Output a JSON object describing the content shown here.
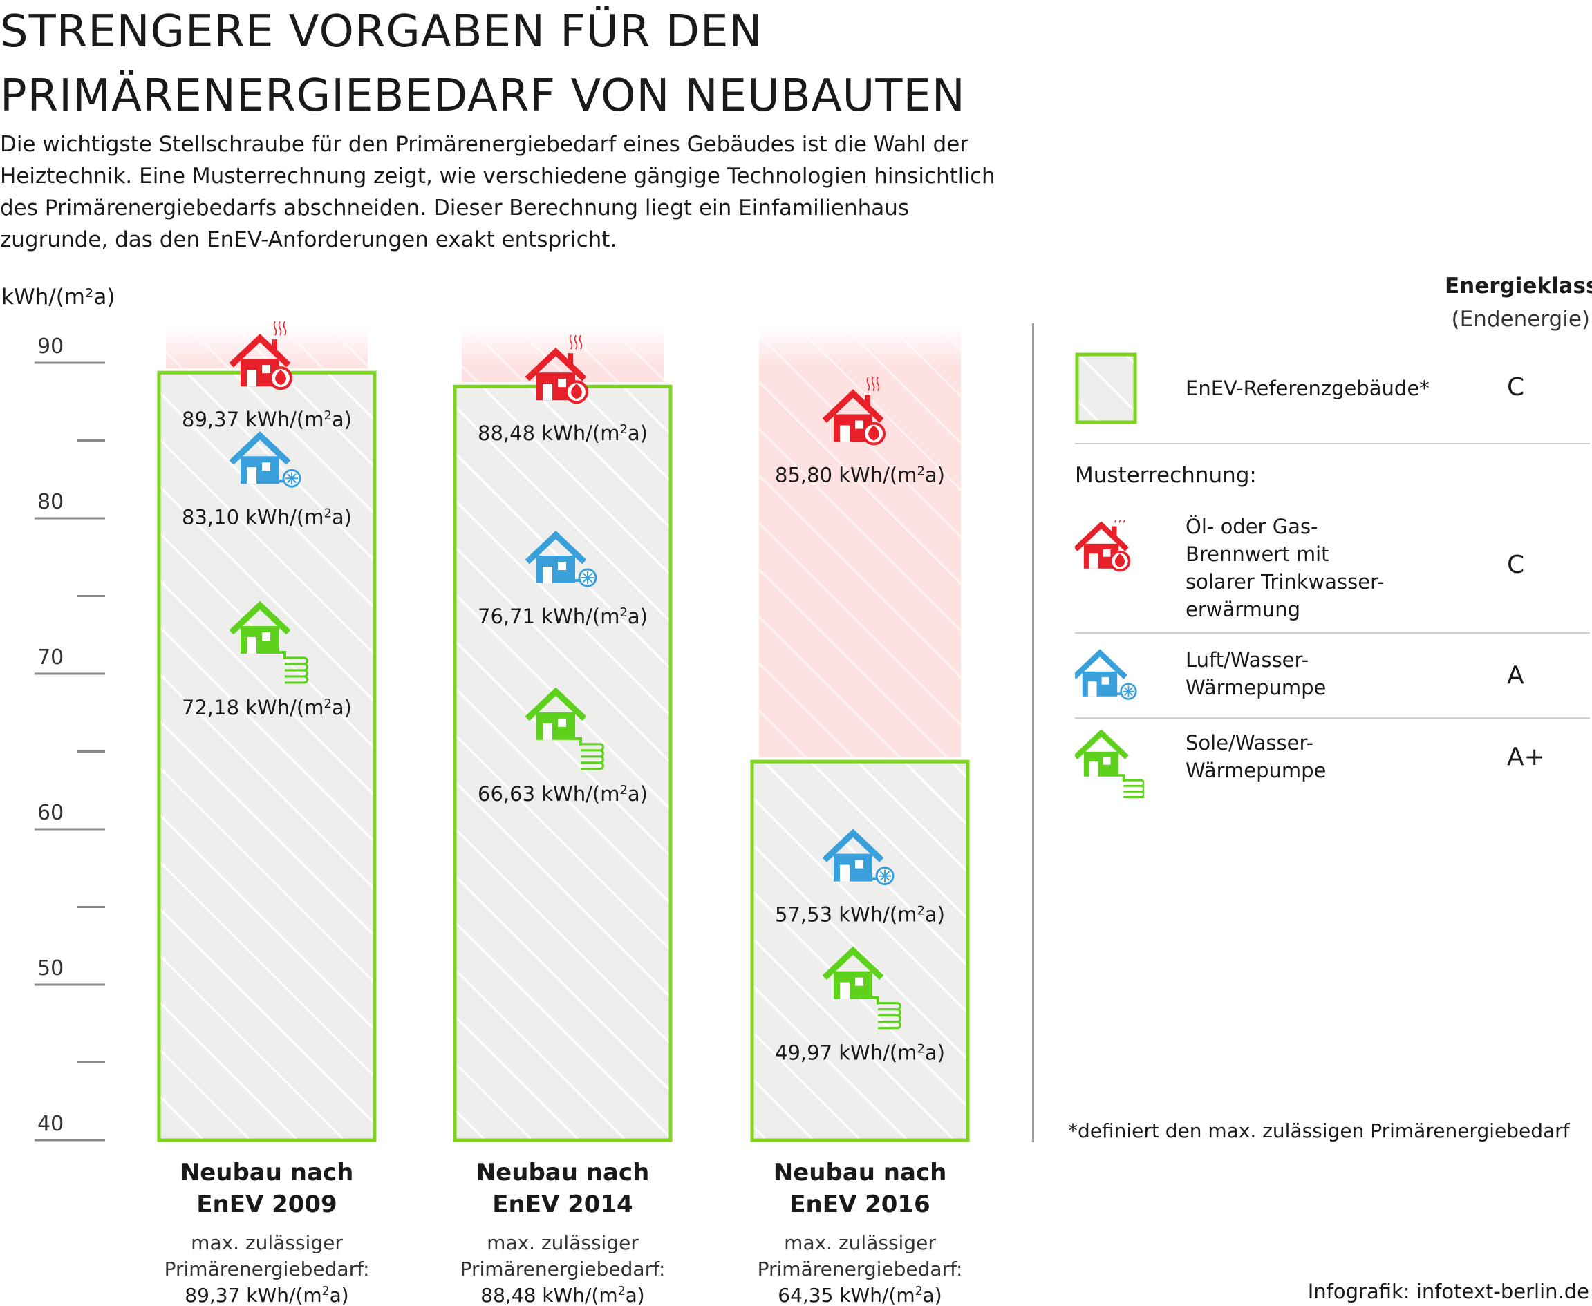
{
  "title": "Strengere Vorgaben für den Primärenergiebedarf von Neubauten",
  "intro": "Die wichtigste Stellschraube für den Primärenergiebedarf eines Gebäudes ist die Wahl der Heiztechnik. Eine Musterrechnung zeigt, wie verschiedene gängige Technologien hinsichtlich des Primärenergiebedarfs abschneiden. Dieser Berechnung liegt ein Einfamilienhaus zugrunde, das den EnEV-Anforderungen exakt entspricht.",
  "footnote": "*definiert den max. zulässigen Primärenergiebedarf",
  "credit": "Infografik: infotext-berlin.de",
  "colors": {
    "oil_gas": "#e8202a",
    "air_water": "#3aa0dc",
    "brine_water": "#5ed11d",
    "reference_border": "#7ed321",
    "reference_fill": "#eeeeed",
    "overlimit_fill": "#fde2e1"
  },
  "legend": {
    "header_bold": "Energieklasse",
    "header_sub": "(Endenergie)",
    "muster_title": "Musterrechnung:",
    "items": [
      {
        "key": "reference",
        "icon": "reference-box-icon",
        "label": "EnEV-Referenzgebäude*",
        "class": "C"
      },
      {
        "key": "oil_gas",
        "icon": "house-flame-icon",
        "label": "Öl- oder Gas-\nBrennwert mit\nsolarer Trinkwasser-\nerwärmung",
        "class": "C"
      },
      {
        "key": "air_water",
        "icon": "house-fan-icon",
        "label": "Luft/Wasser-\nWärmepumpe",
        "class": "A"
      },
      {
        "key": "brine_water",
        "icon": "house-coil-icon",
        "label": "Sole/Wasser-\nWärmepumpe",
        "class": "A+"
      }
    ]
  },
  "chart_data": {
    "type": "bar",
    "ylabel": "kWh/(m²a)",
    "ylim": [
      40,
      90
    ],
    "yticks": [
      40,
      50,
      60,
      70,
      80,
      90
    ],
    "grid": false,
    "legend_position": "right",
    "series": [
      {
        "name": "EnEV-Referenzgebäude*",
        "values": [
          89.37,
          88.48,
          64.35
        ]
      },
      {
        "name": "Öl- oder Gas-Brennwert mit solarer Trinkwassererwärmung",
        "values": [
          89.37,
          88.48,
          85.8
        ]
      },
      {
        "name": "Luft/Wasser-Wärmepumpe",
        "values": [
          83.1,
          76.71,
          57.53
        ]
      },
      {
        "name": "Sole/Wasser-Wärmepumpe",
        "values": [
          72.18,
          66.63,
          49.97
        ]
      }
    ],
    "bars": [
      {
        "title_line1": "Neubau nach",
        "title_line2": "EnEV 2009",
        "max_line1": "max. zulässiger",
        "max_line2": "Primärenergiebedarf:",
        "max_value": "89,37 kWh/(m²a)",
        "reference": 89.37,
        "points": [
          {
            "tech": "oil_gas",
            "value": 89.37,
            "label": "89,37 kWh/(m²a)"
          },
          {
            "tech": "air_water",
            "value": 83.1,
            "label": "83,10 kWh/(m²a)"
          },
          {
            "tech": "brine_water",
            "value": 72.18,
            "label": "72,18 kWh/(m²a)"
          }
        ]
      },
      {
        "title_line1": "Neubau nach",
        "title_line2": "EnEV 2014",
        "max_line1": "max. zulässiger",
        "max_line2": "Primärenergiebedarf:",
        "max_value": "88,48 kWh/(m²a)",
        "reference": 88.48,
        "points": [
          {
            "tech": "oil_gas",
            "value": 88.48,
            "label": "88,48 kWh/(m²a)"
          },
          {
            "tech": "air_water",
            "value": 76.71,
            "label": "76,71 kWh/(m²a)"
          },
          {
            "tech": "brine_water",
            "value": 66.63,
            "label": "66,63 kWh/(m²a)"
          }
        ]
      },
      {
        "title_line1": "Neubau nach",
        "title_line2": "EnEV 2016",
        "max_line1": "max. zulässiger",
        "max_line2": "Primärenergiebedarf:",
        "max_value": "64,35 kWh/(m²a)",
        "reference": 64.35,
        "points": [
          {
            "tech": "oil_gas",
            "value": 85.8,
            "label": "85,80 kWh/(m²a)"
          },
          {
            "tech": "air_water",
            "value": 57.53,
            "label": "57,53 kWh/(m²a)"
          },
          {
            "tech": "brine_water",
            "value": 49.97,
            "label": "49,97 kWh/(m²a)"
          }
        ]
      }
    ]
  }
}
